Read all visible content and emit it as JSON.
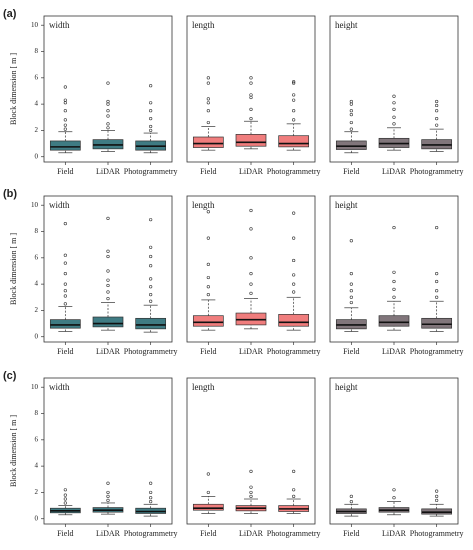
{
  "chart_data": [
    {
      "type": "box",
      "row_label": "(a)",
      "ylabel": "Block dimension [ m ]",
      "title": "width",
      "categories": [
        "Field",
        "LiDAR",
        "Photogrammetry"
      ],
      "color": "#3f7b83",
      "ylim": [
        -0.4,
        10.7
      ],
      "yticks": [
        0,
        2,
        4,
        6,
        8,
        10
      ],
      "boxes": [
        {
          "whislo": 0.3,
          "q1": 0.5,
          "med": 0.75,
          "q3": 1.2,
          "whishi": 1.9,
          "fliers": [
            2.1,
            2.4,
            2.8,
            3.5,
            4.1,
            4.3,
            5.3
          ]
        },
        {
          "whislo": 0.4,
          "q1": 0.6,
          "med": 0.9,
          "q3": 1.3,
          "whishi": 2.0,
          "fliers": [
            2.2,
            2.5,
            3.1,
            3.5,
            4.0,
            4.2,
            5.6
          ]
        },
        {
          "whislo": 0.3,
          "q1": 0.5,
          "med": 0.8,
          "q3": 1.2,
          "whishi": 1.8,
          "fliers": [
            2.0,
            2.3,
            2.9,
            3.5,
            4.1,
            5.4
          ]
        }
      ]
    },
    {
      "type": "box",
      "title": "length",
      "categories": [
        "Field",
        "LiDAR",
        "Photogrammetry"
      ],
      "color": "#f07d7d",
      "ylim": [
        -0.4,
        10.7
      ],
      "boxes": [
        {
          "whislo": 0.5,
          "q1": 0.7,
          "med": 1.0,
          "q3": 1.5,
          "whishi": 2.3,
          "fliers": [
            2.6,
            3.5,
            4.1,
            4.4,
            5.6,
            6.0
          ]
        },
        {
          "whislo": 0.6,
          "q1": 0.8,
          "med": 1.1,
          "q3": 1.7,
          "whishi": 2.7,
          "fliers": [
            2.9,
            3.6,
            4.5,
            4.7,
            5.6,
            6.0
          ]
        },
        {
          "whislo": 0.5,
          "q1": 0.75,
          "med": 1.0,
          "q3": 1.6,
          "whishi": 2.5,
          "fliers": [
            2.8,
            3.5,
            4.3,
            4.7,
            5.6,
            5.7
          ]
        }
      ]
    },
    {
      "type": "box",
      "title": "height",
      "categories": [
        "Field",
        "LiDAR",
        "Photogrammetry"
      ],
      "color": "#81767b",
      "ylim": [
        -0.4,
        10.7
      ],
      "boxes": [
        {
          "whislo": 0.3,
          "q1": 0.55,
          "med": 0.8,
          "q3": 1.2,
          "whishi": 1.9,
          "fliers": [
            2.1,
            2.6,
            3.2,
            3.5,
            4.0,
            4.2
          ]
        },
        {
          "whislo": 0.5,
          "q1": 0.7,
          "med": 1.0,
          "q3": 1.4,
          "whishi": 2.2,
          "fliers": [
            2.5,
            3.0,
            3.6,
            4.1,
            4.6
          ]
        },
        {
          "whislo": 0.4,
          "q1": 0.6,
          "med": 0.9,
          "q3": 1.3,
          "whishi": 2.1,
          "fliers": [
            2.4,
            2.9,
            3.5,
            3.9,
            4.2
          ]
        }
      ]
    },
    {
      "type": "box",
      "row_label": "(b)",
      "ylabel": "Block dimension [ m ]",
      "title": "width",
      "categories": [
        "Field",
        "LiDAR",
        "Photogrammetry"
      ],
      "color": "#3f7b83",
      "ylim": [
        -0.4,
        10.7
      ],
      "yticks": [
        0,
        2,
        4,
        6,
        8,
        10
      ],
      "boxes": [
        {
          "whislo": 0.4,
          "q1": 0.65,
          "med": 0.9,
          "q3": 1.3,
          "whishi": 2.3,
          "fliers": [
            2.5,
            3.1,
            3.5,
            4.0,
            4.8,
            5.6,
            6.2,
            8.6
          ]
        },
        {
          "whislo": 0.5,
          "q1": 0.75,
          "med": 1.0,
          "q3": 1.5,
          "whishi": 2.6,
          "fliers": [
            2.9,
            3.4,
            3.9,
            4.3,
            5.0,
            6.1,
            6.5,
            9.0
          ]
        },
        {
          "whislo": 0.35,
          "q1": 0.6,
          "med": 0.9,
          "q3": 1.4,
          "whishi": 2.4,
          "fliers": [
            2.7,
            3.2,
            3.8,
            4.4,
            5.4,
            6.1,
            6.8,
            8.9
          ]
        }
      ]
    },
    {
      "type": "box",
      "title": "length",
      "categories": [
        "Field",
        "LiDAR",
        "Photogrammetry"
      ],
      "color": "#f07d7d",
      "ylim": [
        -0.4,
        10.7
      ],
      "boxes": [
        {
          "whislo": 0.5,
          "q1": 0.8,
          "med": 1.1,
          "q3": 1.6,
          "whishi": 2.8,
          "fliers": [
            3.2,
            3.8,
            4.5,
            5.5,
            7.5,
            9.5
          ]
        },
        {
          "whislo": 0.6,
          "q1": 0.9,
          "med": 1.3,
          "q3": 1.8,
          "whishi": 2.9,
          "fliers": [
            3.3,
            4.0,
            4.8,
            6.0,
            8.2,
            9.6
          ]
        },
        {
          "whislo": 0.5,
          "q1": 0.8,
          "med": 1.1,
          "q3": 1.7,
          "whishi": 3.0,
          "fliers": [
            3.4,
            4.0,
            4.7,
            5.8,
            7.5,
            9.4
          ]
        }
      ]
    },
    {
      "type": "box",
      "title": "height",
      "categories": [
        "Field",
        "LiDAR",
        "Photogrammetry"
      ],
      "color": "#81767b",
      "ylim": [
        -0.4,
        10.7
      ],
      "boxes": [
        {
          "whislo": 0.4,
          "q1": 0.6,
          "med": 0.9,
          "q3": 1.3,
          "whishi": 2.2,
          "fliers": [
            2.6,
            3.0,
            3.5,
            4.0,
            4.8,
            7.3
          ]
        },
        {
          "whislo": 0.5,
          "q1": 0.8,
          "med": 1.1,
          "q3": 1.6,
          "whishi": 2.7,
          "fliers": [
            3.0,
            3.6,
            4.2,
            4.9,
            8.3
          ]
        },
        {
          "whislo": 0.4,
          "q1": 0.65,
          "med": 0.95,
          "q3": 1.4,
          "whishi": 2.7,
          "fliers": [
            3.0,
            3.5,
            4.2,
            4.8,
            8.3
          ]
        }
      ]
    },
    {
      "type": "box",
      "row_label": "(c)",
      "ylabel": "Block dimension [ m ]",
      "title": "width",
      "categories": [
        "Field",
        "LiDAR",
        "Photogrammetry"
      ],
      "color": "#3f7b83",
      "ylim": [
        -0.4,
        10.7
      ],
      "yticks": [
        0,
        2,
        4,
        6,
        8,
        10
      ],
      "boxes": [
        {
          "whislo": 0.3,
          "q1": 0.45,
          "med": 0.6,
          "q3": 0.8,
          "whishi": 1.0,
          "fliers": [
            1.2,
            1.5,
            1.8,
            2.2
          ]
        },
        {
          "whislo": 0.35,
          "q1": 0.5,
          "med": 0.65,
          "q3": 0.85,
          "whishi": 1.2,
          "fliers": [
            1.4,
            1.7,
            2.0,
            2.7
          ]
        },
        {
          "whislo": 0.2,
          "q1": 0.4,
          "med": 0.55,
          "q3": 0.8,
          "whishi": 1.1,
          "fliers": [
            1.3,
            1.6,
            2.0,
            2.7
          ]
        }
      ]
    },
    {
      "type": "box",
      "title": "length",
      "categories": [
        "Field",
        "LiDAR",
        "Photogrammetry"
      ],
      "color": "#f07d7d",
      "ylim": [
        -0.4,
        10.7
      ],
      "boxes": [
        {
          "whislo": 0.4,
          "q1": 0.65,
          "med": 0.8,
          "q3": 1.1,
          "whishi": 1.7,
          "fliers": [
            2.0,
            3.4
          ]
        },
        {
          "whislo": 0.4,
          "q1": 0.6,
          "med": 0.8,
          "q3": 1.0,
          "whishi": 1.5,
          "fliers": [
            1.7,
            2.0,
            2.4,
            3.6
          ]
        },
        {
          "whislo": 0.4,
          "q1": 0.55,
          "med": 0.75,
          "q3": 1.0,
          "whishi": 1.5,
          "fliers": [
            1.7,
            2.2,
            3.6
          ]
        }
      ]
    },
    {
      "type": "box",
      "title": "height",
      "categories": [
        "Field",
        "LiDAR",
        "Photogrammetry"
      ],
      "color": "#81767b",
      "ylim": [
        -0.4,
        10.7
      ],
      "boxes": [
        {
          "whislo": 0.2,
          "q1": 0.4,
          "med": 0.55,
          "q3": 0.75,
          "whishi": 1.1,
          "fliers": [
            1.3,
            1.7
          ]
        },
        {
          "whislo": 0.3,
          "q1": 0.5,
          "med": 0.65,
          "q3": 0.85,
          "whishi": 1.3,
          "fliers": [
            1.6,
            2.2
          ]
        },
        {
          "whislo": 0.2,
          "q1": 0.35,
          "med": 0.5,
          "q3": 0.75,
          "whishi": 1.1,
          "fliers": [
            1.4,
            1.7,
            2.1
          ]
        }
      ]
    }
  ]
}
